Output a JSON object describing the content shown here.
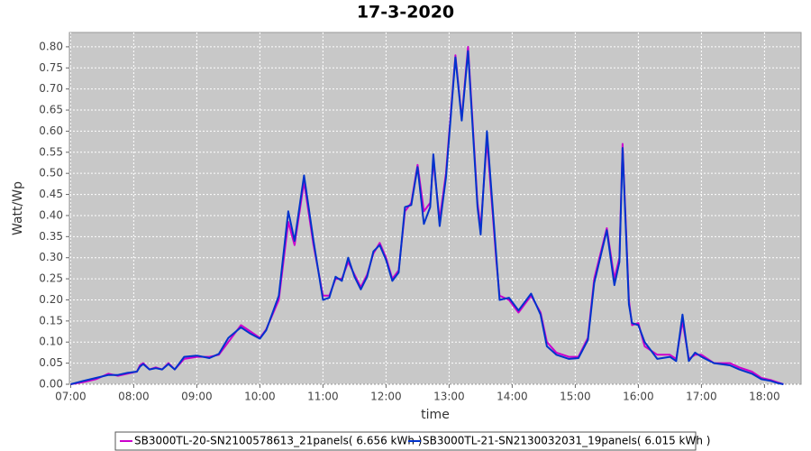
{
  "chart_data": {
    "type": "line",
    "title": "17-3-2020",
    "x_label": "time",
    "y_label": "Watt/Wp",
    "x": [
      7.0,
      7.2,
      7.4,
      7.6,
      7.75,
      7.9,
      8.05,
      8.1,
      8.15,
      8.25,
      8.35,
      8.45,
      8.55,
      8.65,
      8.8,
      9.0,
      9.2,
      9.35,
      9.5,
      9.7,
      9.85,
      10.0,
      10.1,
      10.3,
      10.45,
      10.55,
      10.7,
      10.85,
      11.0,
      11.1,
      11.2,
      11.3,
      11.4,
      11.5,
      11.6,
      11.7,
      11.8,
      11.9,
      12.0,
      12.1,
      12.2,
      12.3,
      12.4,
      12.5,
      12.6,
      12.7,
      12.75,
      12.85,
      12.95,
      13.1,
      13.2,
      13.3,
      13.45,
      13.5,
      13.6,
      13.75,
      13.8,
      13.95,
      14.1,
      14.3,
      14.45,
      14.55,
      14.7,
      14.9,
      15.05,
      15.2,
      15.3,
      15.5,
      15.62,
      15.7,
      15.75,
      15.85,
      15.9,
      16.0,
      16.1,
      16.3,
      16.5,
      16.6,
      16.7,
      16.8,
      16.9,
      17.0,
      17.2,
      17.45,
      17.6,
      17.8,
      17.95,
      18.1,
      18.2,
      18.3
    ],
    "series": [
      {
        "name": "SB3000TL-20-SN2100578613_21panels( 6.656 kWh )",
        "color": "#cc00cc",
        "values": [
          0.0,
          0.005,
          0.012,
          0.025,
          0.02,
          0.025,
          0.03,
          0.045,
          0.05,
          0.035,
          0.04,
          0.035,
          0.05,
          0.035,
          0.06,
          0.065,
          0.065,
          0.07,
          0.1,
          0.14,
          0.125,
          0.11,
          0.13,
          0.2,
          0.385,
          0.33,
          0.48,
          0.33,
          0.21,
          0.21,
          0.25,
          0.25,
          0.29,
          0.26,
          0.23,
          0.26,
          0.31,
          0.335,
          0.3,
          0.25,
          0.27,
          0.41,
          0.43,
          0.52,
          0.41,
          0.43,
          0.53,
          0.39,
          0.5,
          0.78,
          0.63,
          0.8,
          0.43,
          0.37,
          0.58,
          0.29,
          0.21,
          0.2,
          0.17,
          0.21,
          0.17,
          0.1,
          0.075,
          0.065,
          0.065,
          0.11,
          0.25,
          0.37,
          0.25,
          0.3,
          0.57,
          0.2,
          0.14,
          0.145,
          0.09,
          0.07,
          0.07,
          0.06,
          0.15,
          0.06,
          0.07,
          0.07,
          0.05,
          0.05,
          0.04,
          0.03,
          0.015,
          0.01,
          0.005,
          0.0
        ]
      },
      {
        "name": "SB3000TL-21-SN2130032031_19panels( 6.015 kWh )",
        "color": "#0033cc",
        "values": [
          0.0,
          0.008,
          0.015,
          0.022,
          0.022,
          0.027,
          0.03,
          0.042,
          0.048,
          0.035,
          0.038,
          0.035,
          0.048,
          0.035,
          0.065,
          0.068,
          0.062,
          0.072,
          0.11,
          0.135,
          0.12,
          0.108,
          0.128,
          0.21,
          0.41,
          0.34,
          0.495,
          0.34,
          0.2,
          0.205,
          0.255,
          0.245,
          0.3,
          0.255,
          0.225,
          0.255,
          0.315,
          0.33,
          0.295,
          0.245,
          0.265,
          0.42,
          0.425,
          0.515,
          0.38,
          0.42,
          0.545,
          0.375,
          0.49,
          0.775,
          0.625,
          0.79,
          0.42,
          0.355,
          0.6,
          0.3,
          0.2,
          0.205,
          0.175,
          0.215,
          0.165,
          0.09,
          0.07,
          0.06,
          0.062,
          0.105,
          0.24,
          0.365,
          0.235,
          0.29,
          0.56,
          0.19,
          0.145,
          0.14,
          0.1,
          0.06,
          0.065,
          0.055,
          0.165,
          0.055,
          0.075,
          0.065,
          0.05,
          0.045,
          0.035,
          0.025,
          0.012,
          0.008,
          0.003,
          0.0
        ]
      }
    ],
    "xlim": [
      6.98,
      18.58
    ],
    "xticks": [
      {
        "value": 7,
        "label": "07:00"
      },
      {
        "value": 8,
        "label": "08:00"
      },
      {
        "value": 9,
        "label": "09:00"
      },
      {
        "value": 10,
        "label": "10:00"
      },
      {
        "value": 11,
        "label": "11:00"
      },
      {
        "value": 12,
        "label": "12:00"
      },
      {
        "value": 13,
        "label": "13:00"
      },
      {
        "value": 14,
        "label": "14:00"
      },
      {
        "value": 15,
        "label": "15:00"
      },
      {
        "value": 16,
        "label": "16:00"
      },
      {
        "value": 17,
        "label": "17:00"
      },
      {
        "value": 18,
        "label": "18:00"
      }
    ],
    "ylim": [
      0,
      0.834
    ],
    "yticks": [
      {
        "value": 0,
        "label": "0.00"
      },
      {
        "value": 0.05,
        "label": "0.05"
      },
      {
        "value": 0.1,
        "label": "0.10"
      },
      {
        "value": 0.15,
        "label": "0.15"
      },
      {
        "value": 0.2,
        "label": "0.20"
      },
      {
        "value": 0.25,
        "label": "0.25"
      },
      {
        "value": 0.3,
        "label": "0.30"
      },
      {
        "value": 0.35,
        "label": "0.35"
      },
      {
        "value": 0.4,
        "label": "0.40"
      },
      {
        "value": 0.45,
        "label": "0.45"
      },
      {
        "value": 0.5,
        "label": "0.50"
      },
      {
        "value": 0.55,
        "label": "0.55"
      },
      {
        "value": 0.6,
        "label": "0.60"
      },
      {
        "value": 0.65,
        "label": "0.65"
      },
      {
        "value": 0.7,
        "label": "0.70"
      },
      {
        "value": 0.75,
        "label": "0.75"
      },
      {
        "value": 0.8,
        "label": "0.80"
      }
    ],
    "grid": true,
    "legend": "bottom"
  }
}
